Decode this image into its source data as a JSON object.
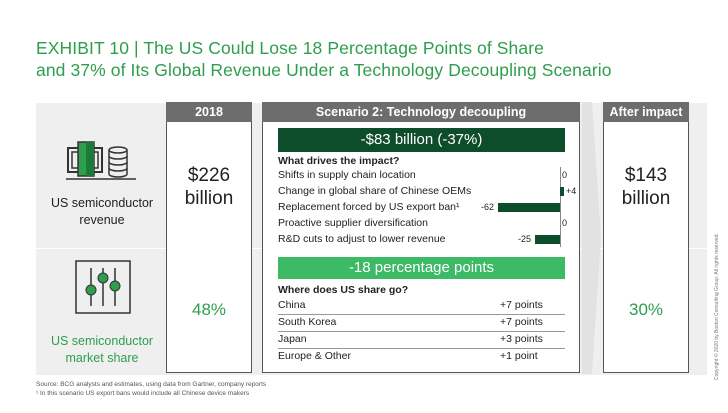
{
  "title": {
    "line1": "EXHIBIT 10 | The US Could Lose 18 Percentage Points of Share",
    "line2": "and 37% of Its Global Revenue Under a Technology Decoupling Scenario"
  },
  "columns": {
    "baseline": "2018",
    "scenario": "Scenario 2: Technology decoupling",
    "after": "After impact"
  },
  "revenue": {
    "label_line1": "US semiconductor",
    "label_line2": "revenue",
    "baseline_line1": "$226",
    "baseline_line2": "billion",
    "after_line1": "$143",
    "after_line2": "billion",
    "impact": "-$83 billion (-37%)",
    "drivers_heading": "What drives the impact?"
  },
  "share": {
    "label_line1": "US semiconductor",
    "label_line2": "market share",
    "baseline": "48%",
    "after": "30%",
    "impact": "-18 percentage points",
    "heading": "Where does US share go?",
    "rows": [
      {
        "country": "China",
        "value": "+7 points"
      },
      {
        "country": "South Korea",
        "value": "+7 points"
      },
      {
        "country": "Japan",
        "value": "+3 points"
      },
      {
        "country": "Europe & Other",
        "value": "+1 point"
      }
    ]
  },
  "chart_data": {
    "type": "bar",
    "orientation": "horizontal",
    "categories": [
      "Shifts in supply chain location",
      "Change in global share of Chinese OEMs",
      "Replacement forced by US export ban¹",
      "Proactive supplier diversification",
      "R&D cuts to adjust to lower revenue"
    ],
    "values": [
      0,
      4,
      -62,
      0,
      -25
    ],
    "value_labels": [
      "0",
      "+4",
      "-62",
      "0",
      "-25"
    ],
    "xlim": [
      -65,
      5
    ]
  },
  "footnotes": {
    "source": "Source: BCG analysts and estimates, using data from Gartner, company reports",
    "note": "¹ In this scenario US export bans would include all Chinese device makers"
  },
  "copyright": "Copyright © 2020 by Boston Consulting Group. All rights reserved.",
  "colors": {
    "green": "#2e9e4e",
    "dark_green": "#0e4d2c",
    "bright_green": "#3cba65",
    "header_gray": "#6d6d6d"
  },
  "icons": [
    "money-stack-icon",
    "slider-controls-icon",
    "chevron-arrow-icon"
  ]
}
